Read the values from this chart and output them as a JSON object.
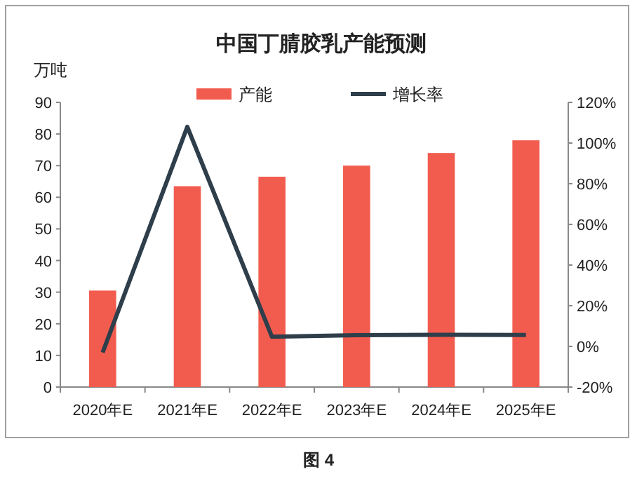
{
  "chart_data": {
    "type": "bar",
    "title": "中国丁腈胶乳产能预测",
    "ylabel": "万吨",
    "annotations": [
      "图 4"
    ],
    "categories": [
      "2020年E",
      "2021年E",
      "2022年E",
      "2023年E",
      "2024年E",
      "2025年E"
    ],
    "series": [
      {
        "name": "产能",
        "color": "#f25c4f",
        "values": [
          30.5,
          63.5,
          66.5,
          70,
          74,
          78
        ]
      },
      {
        "name": "增长率",
        "type": "line",
        "axis": "y2",
        "color": "#2e3e4a",
        "values": [
          -3,
          108,
          4.7,
          5.5,
          5.7,
          5.6
        ]
      }
    ],
    "ylim": [
      0,
      90
    ],
    "yticks": [
      0,
      10,
      20,
      30,
      40,
      50,
      60,
      70,
      80,
      90
    ],
    "y2lim": [
      -20,
      120
    ],
    "y2ticks": [
      {
        "value": -20,
        "label": "-20%"
      },
      {
        "value": 0,
        "label": "0%"
      },
      {
        "value": 20,
        "label": "20%"
      },
      {
        "value": 40,
        "label": "40%"
      },
      {
        "value": 60,
        "label": "60%"
      },
      {
        "value": 80,
        "label": "80%"
      },
      {
        "value": 100,
        "label": "100%"
      },
      {
        "value": 120,
        "label": "120%"
      }
    ],
    "legend": "top",
    "grid": false,
    "marker": "none",
    "line_style": "solid"
  }
}
